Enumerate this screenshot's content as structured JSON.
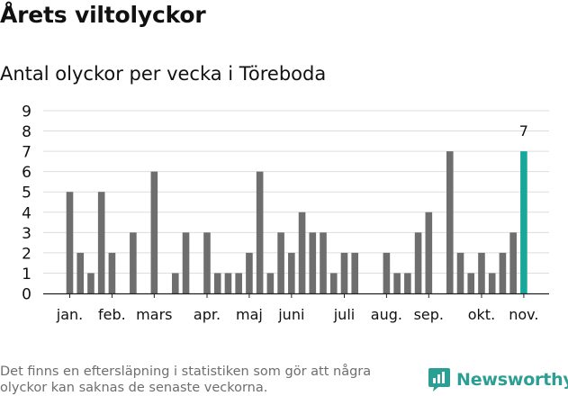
{
  "title": "Årets viltolyckor",
  "subtitle": "Antal olyckor per vecka i Töreboda",
  "footnote": "Det finns en eftersläpning i statistiken som gör att några olyckor kan saknas de senaste veckorna.",
  "logo": {
    "text": "Newsworthy",
    "icon": "newsworthy-chart-icon"
  },
  "colors": {
    "bar": "#6e6e6e",
    "highlight": "#17a89b",
    "grid": "#dddddd",
    "text": "#111111",
    "logo": "#2b9f94"
  },
  "chart_data": {
    "type": "bar",
    "title": "Antal olyckor per vecka i Töreboda",
    "values": [
      5,
      2,
      1,
      5,
      2,
      0,
      3,
      0,
      6,
      0,
      1,
      3,
      0,
      3,
      1,
      1,
      1,
      2,
      6,
      1,
      3,
      2,
      4,
      3,
      3,
      1,
      2,
      2,
      0,
      0,
      2,
      1,
      1,
      3,
      4,
      0,
      7,
      2,
      1,
      2,
      1,
      2,
      3,
      7
    ],
    "highlight_index": 43,
    "highlight_label": "7",
    "month_labels": [
      {
        "label": "jan.",
        "index": 0
      },
      {
        "label": "feb.",
        "index": 4
      },
      {
        "label": "mars",
        "index": 8
      },
      {
        "label": "apr.",
        "index": 13
      },
      {
        "label": "maj",
        "index": 17
      },
      {
        "label": "juni",
        "index": 21
      },
      {
        "label": "juli",
        "index": 26
      },
      {
        "label": "aug.",
        "index": 30
      },
      {
        "label": "sep.",
        "index": 34
      },
      {
        "label": "okt.",
        "index": 39
      },
      {
        "label": "nov.",
        "index": 43
      }
    ],
    "ylim": [
      0,
      9
    ],
    "yticks": [
      0,
      1,
      2,
      3,
      4,
      5,
      6,
      7,
      8,
      9
    ],
    "grid": true
  }
}
